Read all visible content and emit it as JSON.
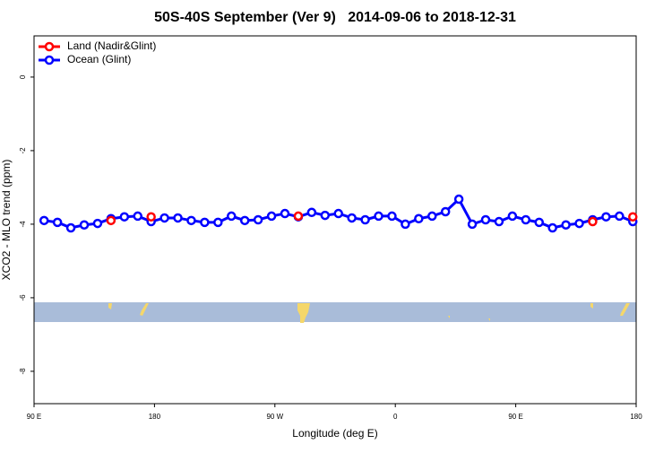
{
  "chart_data": {
    "type": "line",
    "title": "50S-40S September (Ver 9)   2014-09-06 to 2018-12-31",
    "xlabel": "Longitude (deg E)",
    "ylabel": "XCO2 - MLO trend (ppm)",
    "xlim": [
      90,
      540
    ],
    "ylim": [
      -8.88,
      1.12
    ],
    "xticks": [
      {
        "value": 90,
        "label": "90 E"
      },
      {
        "value": 180,
        "label": "180"
      },
      {
        "value": 270,
        "label": "90 W"
      },
      {
        "value": 360,
        "label": "0"
      },
      {
        "value": 450,
        "label": "90 E"
      },
      {
        "value": 540,
        "label": "180"
      }
    ],
    "yticks": [
      0,
      -2,
      -4,
      -6,
      -8
    ],
    "legend": "top-left",
    "x": [
      97.5,
      107.5,
      117.5,
      127.5,
      137.5,
      147.5,
      157.5,
      167.5,
      177.5,
      187.5,
      197.5,
      207.5,
      217.5,
      227.5,
      237.5,
      247.5,
      257.5,
      267.5,
      277.5,
      287.5,
      297.5,
      307.5,
      317.5,
      327.5,
      337.5,
      347.5,
      357.5,
      367.5,
      377.5,
      387.5,
      397.5,
      407.5,
      417.5,
      427.5,
      437.5,
      447.5,
      457.5,
      467.5,
      477.5,
      487.5,
      497.5,
      507.5,
      517.5,
      527.5,
      537.5
    ],
    "series": [
      {
        "name": "Ocean (Glint)",
        "color": "#0000ff",
        "values": [
          -3.9,
          -3.95,
          -4.1,
          -4.02,
          -3.98,
          -3.85,
          -3.8,
          -3.78,
          -3.93,
          -3.83,
          -3.83,
          -3.9,
          -3.95,
          -3.95,
          -3.78,
          -3.9,
          -3.88,
          -3.78,
          -3.71,
          -3.8,
          -3.68,
          -3.76,
          -3.71,
          -3.83,
          -3.88,
          -3.78,
          -3.78,
          -4.0,
          -3.85,
          -3.78,
          -3.66,
          -3.32,
          -4.0,
          -3.88,
          -3.93,
          -3.78,
          -3.88,
          -3.95,
          -4.1,
          -4.02,
          -3.98,
          -3.88,
          -3.8,
          -3.78,
          -3.93
        ]
      },
      {
        "name": "Land (Nadir&Glint)",
        "color": "#ff0000",
        "values": [
          null,
          null,
          null,
          null,
          null,
          -3.9,
          null,
          null,
          -3.8,
          null,
          null,
          null,
          null,
          null,
          null,
          null,
          null,
          null,
          null,
          -3.78,
          null,
          null,
          null,
          null,
          null,
          null,
          null,
          null,
          null,
          null,
          null,
          null,
          null,
          null,
          null,
          null,
          null,
          null,
          null,
          null,
          null,
          -3.93,
          null,
          null,
          -3.8
        ]
      }
    ]
  }
}
